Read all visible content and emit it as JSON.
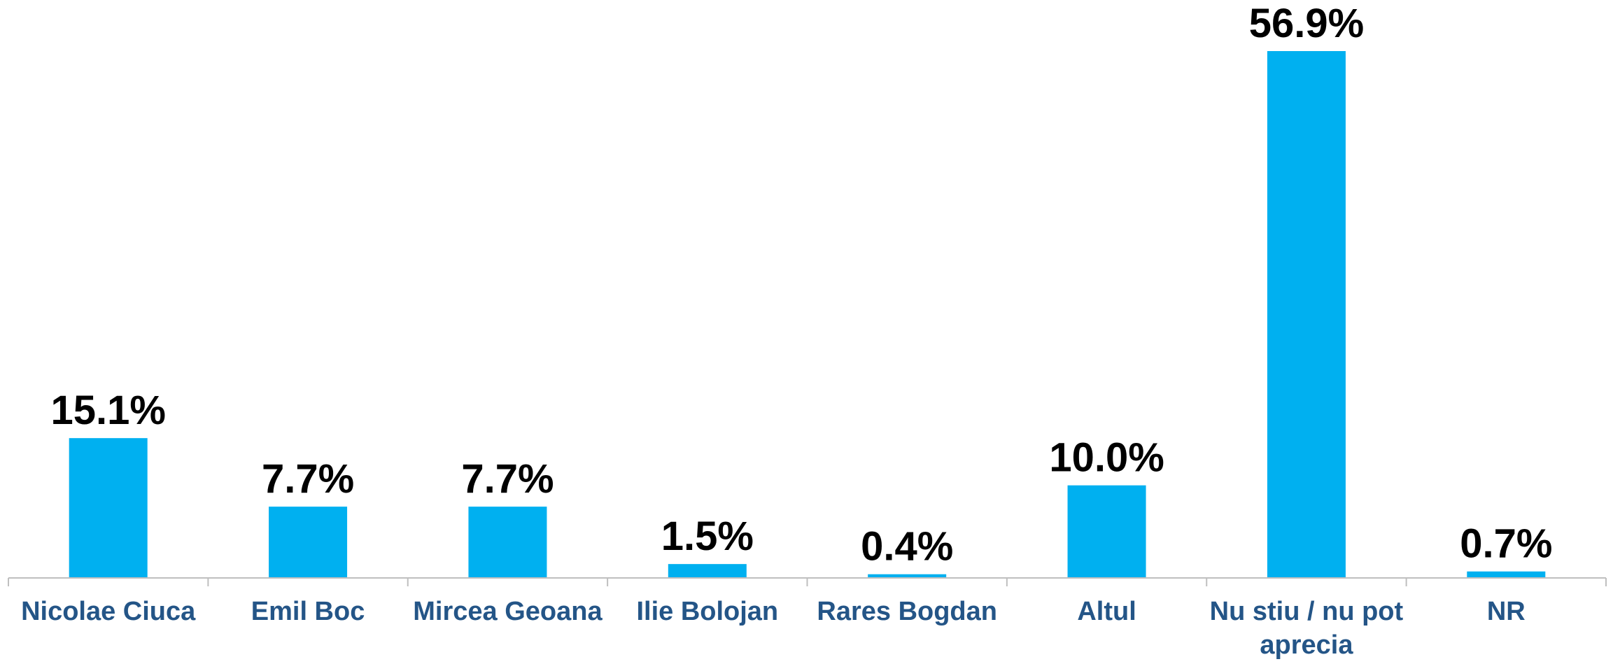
{
  "chart_data": {
    "type": "bar",
    "categories": [
      "Nicolae Ciuca",
      "Emil Boc",
      "Mircea Geoana",
      "Ilie Bolojan",
      "Rares Bogdan",
      "Altul",
      "Nu stiu / nu pot aprecia",
      "NR"
    ],
    "values": [
      15.1,
      7.7,
      7.7,
      1.5,
      0.4,
      10.0,
      56.9,
      0.7
    ],
    "value_labels": [
      "15.1%",
      "7.7%",
      "7.7%",
      "1.5%",
      "0.4%",
      "10.0%",
      "56.9%",
      "0.7%"
    ],
    "color": "#00b0f0"
  }
}
